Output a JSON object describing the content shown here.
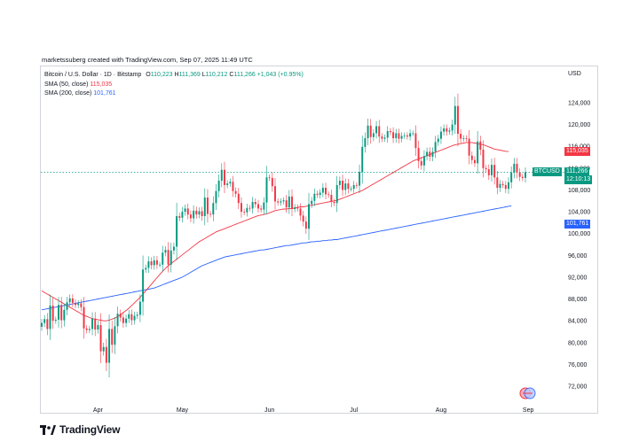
{
  "credit": "marketssuberg created with TradingView.com, Sep 07, 2025 11:49 UTC",
  "legend": {
    "symbol": "Bitcoin / U.S. Dollar · 1D · Bitstamp",
    "o_label": "O",
    "o": "110,223",
    "h_label": "H",
    "h": "111,369",
    "l_label": "L",
    "l": "110,212",
    "c_label": "C",
    "c": "111,266",
    "change": "+1,043 (+0.95%)",
    "sma50_label": "SMA (50, close)",
    "sma50": "115,035",
    "sma200_label": "SMA (200, close)",
    "sma200": "101,761"
  },
  "currency": "USD",
  "price_tags": {
    "sma50": "115,035",
    "close": "111,266",
    "countdown": "12:10:13",
    "sma200": "101,761",
    "symbol": "BTCUSD"
  },
  "brand": "TradingView",
  "colors": {
    "up": "#089981",
    "down": "#f23645",
    "sma50": "#f23645",
    "sma200": "#2962ff"
  },
  "chart_data": {
    "type": "candlestick",
    "ylim": [
      70000,
      126000
    ],
    "ticks": [
      "124,000",
      "120,000",
      "116,000",
      "112,000",
      "108,000",
      "104,000",
      "100,000",
      "96,000",
      "92,000",
      "88,000",
      "84,000",
      "80,000",
      "76,000",
      "72,000"
    ],
    "tick_values": [
      124000,
      120000,
      116000,
      112000,
      108000,
      104000,
      100000,
      96000,
      92000,
      88000,
      84000,
      80000,
      76000,
      72000
    ],
    "xlabels": [
      "Apr",
      "May",
      "Jun",
      "Jul",
      "Aug",
      "Sep"
    ],
    "xlabel_dates": [
      "2025-04-01",
      "2025-05-01",
      "2025-06-01",
      "2025-07-01",
      "2025-08-01",
      "2025-09-01"
    ],
    "start_date": "2025-03-12",
    "close": [
      83600,
      84300,
      82500,
      86800,
      84000,
      84200,
      86900,
      84100,
      86000,
      87400,
      88100,
      87300,
      86900,
      87200,
      86500,
      82600,
      82300,
      82500,
      84400,
      82400,
      83200,
      78400,
      79200,
      76300,
      82500,
      79600,
      83000,
      85300,
      84600,
      83600,
      84400,
      85200,
      84100,
      84900,
      85100,
      87500,
      93400,
      93700,
      94900,
      94200,
      95100,
      94300,
      94300,
      96500,
      97000,
      94300,
      96900,
      97600,
      103200,
      102900,
      104000,
      104600,
      103500,
      102800,
      104200,
      103500,
      104100,
      103200,
      106600,
      103600,
      103500,
      105600,
      107800,
      109700,
      111700,
      108900,
      109200,
      109500,
      107800,
      107300,
      105600,
      104000,
      103900,
      104700,
      104600,
      105800,
      105400,
      104600,
      104400,
      105700,
      110300,
      110200,
      108700,
      105900,
      105700,
      105900,
      106100,
      104800,
      106800,
      104500,
      104800,
      104600,
      103300,
      102200,
      100900,
      105400,
      106000,
      107300,
      107100,
      107500,
      108400,
      107200,
      107100,
      105800,
      105600,
      108900,
      109700,
      108000,
      109200,
      108200,
      108200,
      108900,
      108800,
      111300,
      115900,
      117500,
      119800,
      117700,
      118400,
      119700,
      117800,
      117400,
      117600,
      118800,
      118600,
      117500,
      118400,
      117400,
      117900,
      118000,
      117800,
      118400,
      118400,
      115700,
      113300,
      112500,
      114200,
      115000,
      114100,
      115000,
      116800,
      117400,
      118700,
      119300,
      118700,
      118900,
      120000,
      123400,
      118300,
      117400,
      117500,
      117400,
      114300,
      113500,
      112900,
      116900,
      115400,
      112000,
      111800,
      110700,
      112600,
      110300,
      108400,
      109100,
      108900,
      108200,
      109400,
      111200,
      112800,
      111200,
      110400,
      110200,
      111266
    ],
    "open": [
      82900,
      83600,
      84300,
      82500,
      86800,
      84000,
      84200,
      86900,
      84100,
      86000,
      87400,
      88100,
      87300,
      86900,
      87200,
      86500,
      82600,
      82300,
      82500,
      84400,
      82400,
      83200,
      78400,
      79200,
      76300,
      82500,
      79600,
      83000,
      85300,
      84600,
      83600,
      84400,
      85200,
      84100,
      84900,
      85100,
      87500,
      93400,
      93700,
      94900,
      94200,
      95100,
      94300,
      94300,
      96500,
      97000,
      94300,
      96900,
      97600,
      103200,
      102900,
      104000,
      104600,
      103500,
      102800,
      104200,
      103500,
      104100,
      103200,
      106600,
      103600,
      103500,
      105600,
      107800,
      109700,
      111700,
      108900,
      109200,
      109500,
      107800,
      107300,
      105600,
      104000,
      103900,
      104700,
      104600,
      105800,
      105400,
      104600,
      104400,
      105700,
      110300,
      110200,
      108700,
      105900,
      105700,
      105900,
      106100,
      104800,
      106800,
      104500,
      104800,
      104600,
      103300,
      102200,
      100900,
      105400,
      106000,
      107300,
      107100,
      107500,
      108400,
      107200,
      107100,
      105800,
      105600,
      108900,
      109700,
      108000,
      109200,
      108200,
      108200,
      108900,
      108800,
      111300,
      115900,
      117500,
      119800,
      117700,
      118400,
      119700,
      117800,
      117400,
      117600,
      118800,
      118600,
      117500,
      118400,
      117400,
      117900,
      118000,
      117800,
      118400,
      118400,
      115700,
      113300,
      112500,
      114200,
      115000,
      114100,
      115000,
      116800,
      117400,
      118700,
      119300,
      118700,
      118900,
      120000,
      123400,
      118300,
      117400,
      117500,
      117400,
      114300,
      113500,
      112900,
      116900,
      115400,
      112000,
      111800,
      110700,
      112600,
      110300,
      108400,
      109100,
      108900,
      108200,
      109400,
      111200,
      112800,
      111200,
      110400,
      110223
    ],
    "sma50": [
      89500,
      89200,
      88900,
      88600,
      88300,
      88000,
      87700,
      87400,
      87100,
      86800,
      86500,
      86200,
      85900,
      85600,
      85300,
      85000,
      84800,
      84600,
      84400,
      84300,
      84200,
      84100,
      84000,
      84000,
      84100,
      84300,
      84500,
      84800,
      85100,
      85500,
      85900,
      86300,
      86800,
      87300,
      87800,
      88300,
      88900,
      89500,
      90100,
      90700,
      91300,
      91900,
      92500,
      93100,
      93600,
      94100,
      94500,
      94900,
      95300,
      95700,
      96100,
      96500,
      96900,
      97300,
      97700,
      98100,
      98500,
      98800,
      99100,
      99400,
      99700,
      100000,
      100300,
      100500,
      100700,
      100900,
      101100,
      101300,
      101500,
      101700,
      101900,
      102100,
      102300,
      102500,
      102700,
      102900,
      103100,
      103300,
      103400,
      103500,
      103600,
      103800,
      104000,
      104200,
      104300,
      104400,
      104500,
      104500,
      104600,
      104600,
      104700,
      104800,
      104900,
      104900,
      105000,
      105100,
      105200,
      105300,
      105400,
      105500,
      105600,
      105700,
      105800,
      105900,
      106000,
      106100,
      106300,
      106500,
      106700,
      106900,
      107100,
      107300,
      107500,
      107700,
      107900,
      108200,
      108500,
      108800,
      109100,
      109400,
      109700,
      110000,
      110300,
      110600,
      110900,
      111200,
      111500,
      111800,
      112100,
      112400,
      112700,
      113000,
      113300,
      113500,
      113700,
      113900,
      114100,
      114300,
      114500,
      114700,
      114900,
      115100,
      115300,
      115500,
      115700,
      115900,
      116100,
      116300,
      116400,
      116500,
      116600,
      116700,
      116700,
      116700,
      116600,
      116500,
      116400,
      116300,
      116100,
      115900,
      115700,
      115500,
      115400,
      115300,
      115200,
      115100,
      115050,
      115035
    ],
    "sma200": [
      86000,
      86100,
      86200,
      86300,
      86400,
      86500,
      86600,
      86700,
      86800,
      86900,
      87000,
      87100,
      87200,
      87300,
      87400,
      87500,
      87600,
      87700,
      87800,
      87900,
      88000,
      88100,
      88200,
      88300,
      88400,
      88500,
      88600,
      88700,
      88800,
      88900,
      89000,
      89100,
      89200,
      89300,
      89400,
      89500,
      89600,
      89700,
      89800,
      89900,
      90000,
      90200,
      90400,
      90600,
      90800,
      91000,
      91200,
      91400,
      91600,
      91800,
      92000,
      92300,
      92600,
      92900,
      93200,
      93500,
      93800,
      94100,
      94300,
      94500,
      94700,
      94900,
      95100,
      95300,
      95500,
      95700,
      95800,
      95900,
      96000,
      96100,
      96200,
      96300,
      96400,
      96500,
      96600,
      96700,
      96800,
      96900,
      97000,
      97000,
      97100,
      97200,
      97300,
      97400,
      97500,
      97600,
      97700,
      97800,
      97800,
      97900,
      98000,
      98100,
      98200,
      98300,
      98300,
      98400,
      98500,
      98500,
      98600,
      98600,
      98700,
      98700,
      98800,
      98800,
      98900,
      98900,
      99000,
      99100,
      99200,
      99300,
      99400,
      99500,
      99600,
      99700,
      99800,
      99900,
      100000,
      100100,
      100200,
      100300,
      100400,
      100500,
      100600,
      100700,
      100800,
      100900,
      101000,
      101100,
      101200,
      101300,
      101400,
      101500,
      101600,
      101700,
      101800,
      101900,
      102000,
      102100,
      102200,
      102300,
      102400,
      102500,
      102600,
      102700,
      102800,
      102900,
      103000,
      103100,
      103200,
      103300,
      103400,
      103500,
      103600,
      103700,
      103800,
      103900,
      104000,
      104100,
      104200,
      104300,
      104400,
      104500,
      104600,
      104700,
      104800,
      104900,
      105000,
      105100,
      101761
    ]
  }
}
